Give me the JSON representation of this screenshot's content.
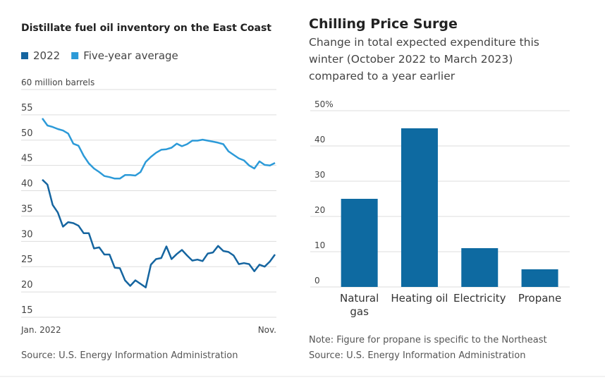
{
  "chart_data": [
    {
      "type": "line",
      "title": "Distillate fuel oil inventory on the East Coast",
      "source": "Source: U.S. Energy Information Administration",
      "categories": [
        "Jan. 2022",
        null,
        null,
        null,
        null,
        null,
        null,
        null,
        null,
        null,
        null,
        null,
        null,
        null,
        null,
        null,
        null,
        null,
        null,
        null,
        null,
        null,
        null,
        null,
        null,
        null,
        null,
        null,
        null,
        null,
        null,
        null,
        null,
        null,
        null,
        null,
        null,
        null,
        null,
        null,
        null,
        null,
        null,
        null,
        null,
        "Nov."
      ],
      "series": [
        {
          "name": "2022",
          "color": "#1565a0",
          "values": [
            42.2,
            41.2,
            37.2,
            35.7,
            32.9,
            33.8,
            33.6,
            33.1,
            31.6,
            31.6,
            28.6,
            28.8,
            27.4,
            27.4,
            24.8,
            24.7,
            22.3,
            21.2,
            22.3,
            21.6,
            20.9,
            25.4,
            26.5,
            26.7,
            29.0,
            26.5,
            27.5,
            28.3,
            27.2,
            26.2,
            26.4,
            26.1,
            27.6,
            27.8,
            29.1,
            28.1,
            27.9,
            27.2,
            25.5,
            25.7,
            25.5,
            24.1,
            25.4,
            25.0,
            26.0,
            27.4
          ]
        },
        {
          "name": "Five-year average",
          "color": "#2c9ad8",
          "values": [
            54.3,
            52.9,
            52.6,
            52.2,
            51.9,
            51.3,
            49.3,
            48.9,
            46.9,
            45.4,
            44.4,
            43.7,
            42.9,
            42.7,
            42.4,
            42.4,
            43.1,
            43.1,
            43.0,
            43.7,
            45.7,
            46.7,
            47.5,
            48.1,
            48.2,
            48.5,
            49.3,
            48.8,
            49.2,
            49.9,
            49.9,
            50.1,
            49.9,
            49.7,
            49.5,
            49.2,
            47.8,
            47.1,
            46.4,
            46.0,
            45.0,
            44.4,
            45.8,
            45.1,
            45.0,
            45.5
          ]
        }
      ],
      "ylim": [
        15,
        60
      ],
      "yticks": [
        15,
        20,
        25,
        30,
        35,
        40,
        45,
        50,
        55,
        {
          "value": 60,
          "label": "60 million barrels"
        }
      ],
      "grid": true
    },
    {
      "type": "bar",
      "title": "Chilling Price Surge",
      "subtitle": "Change in total expected expenditure this winter (October 2022 to March 2023) compared to a year earlier",
      "note": "Note: Figure for propane is specific to the Northeast",
      "source": "Source: U.S. Energy Information Administration",
      "categories": [
        "Natural gas",
        "Heating oil",
        "Electricity",
        "Propane"
      ],
      "values": [
        25,
        45,
        11,
        5
      ],
      "color": "#0e6aa1",
      "ylim": [
        0,
        50
      ],
      "yticks": [
        0,
        10,
        20,
        30,
        40,
        {
          "value": 50,
          "label": "50%"
        }
      ],
      "grid": true
    }
  ]
}
